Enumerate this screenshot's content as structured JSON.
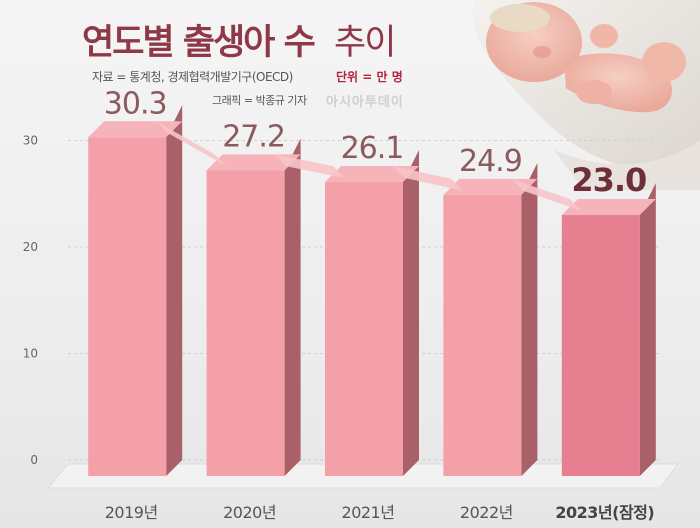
{
  "header": {
    "title_bold": "연도별 출생아 수",
    "title_light": "추이",
    "source": "자료 = 통계청, 경제협력개발기구(OECD)",
    "unit": "단위 = 만 명",
    "credit": "그래픽 = 박종규 기자",
    "logo": "아시아투데이"
  },
  "colors": {
    "title": "#8f3847",
    "bar_front": "#f3a0a8",
    "bar_front_last": "#e67f8f",
    "bar_side": "#a96068",
    "bar_top": "#f6b3b9",
    "value_label": "#8a5a5e",
    "value_label_last": "#6e2f37"
  },
  "chart_data": {
    "type": "bar",
    "categories": [
      "2019년",
      "2020년",
      "2021년",
      "2022년",
      "2023년(잠정)"
    ],
    "values": [
      30.3,
      27.2,
      26.1,
      24.9,
      23.0
    ],
    "value_labels": [
      "30.3",
      "27.2",
      "26.1",
      "24.9",
      "23.0"
    ],
    "yticks": [
      0,
      10,
      20,
      30
    ],
    "ylim": [
      0,
      32
    ],
    "grid": true,
    "style": "3d-bars"
  }
}
